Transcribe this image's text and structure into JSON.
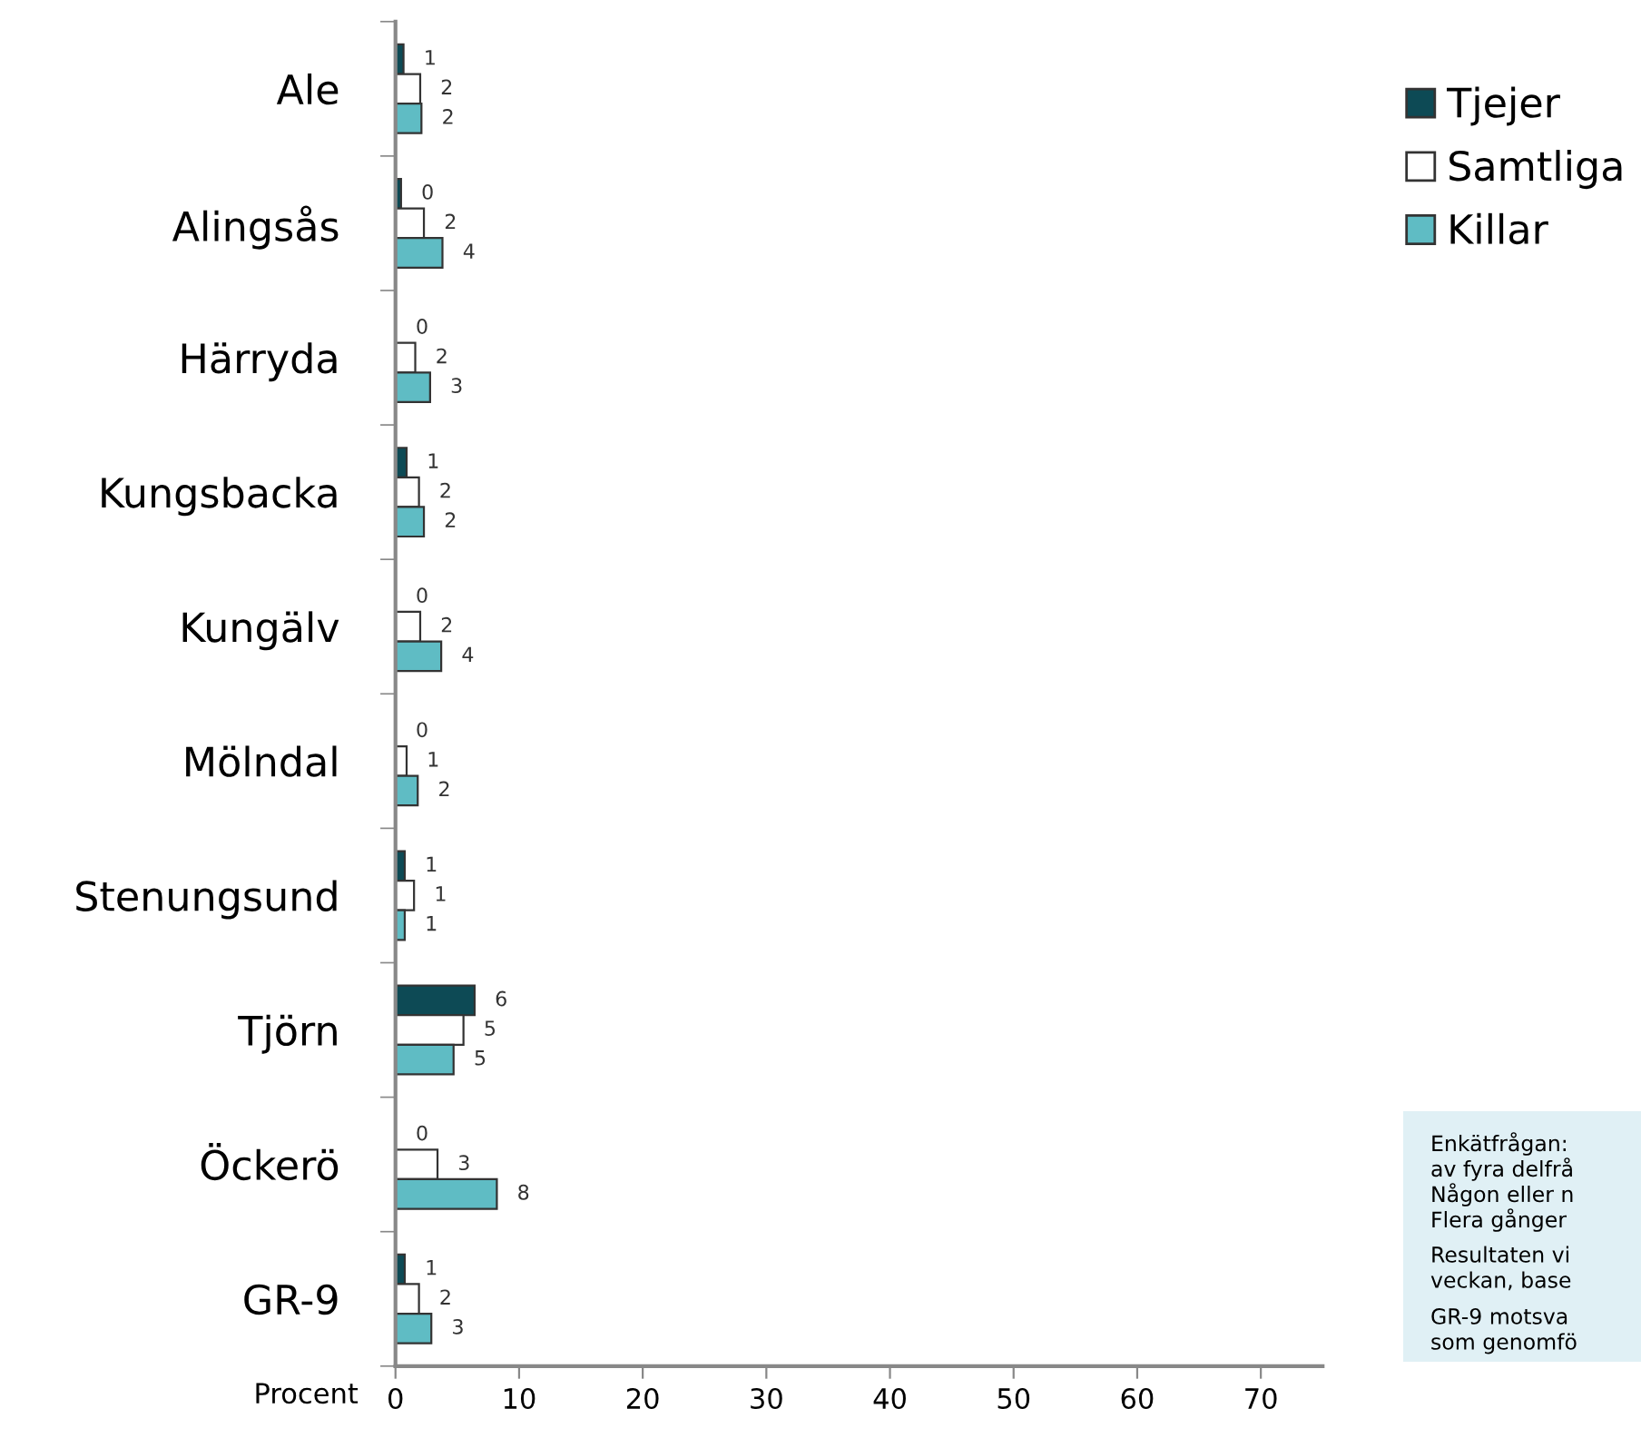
{
  "chart_data": {
    "type": "bar",
    "orientation": "horizontal",
    "xlabel": "Procent",
    "categories": [
      "Ale",
      "Alingsås",
      "Härryda",
      "Kungsbacka",
      "Kungälv",
      "Mölndal",
      "Stenungsund",
      "Tjörn",
      "Öckerö",
      "GR-9"
    ],
    "series": [
      {
        "name": "Tjejer",
        "color": "#0d4a55",
        "values": [
          0.65,
          0.45,
          0,
          0.9,
          0,
          0,
          0.75,
          6.4,
          0,
          0.75
        ],
        "value_labels": [
          "1",
          "0",
          "0",
          "1",
          "0",
          "0",
          "1",
          "6",
          "0",
          "1"
        ]
      },
      {
        "name": "Samtliga",
        "color": "#ffffff",
        "values": [
          2.0,
          2.3,
          1.6,
          1.9,
          2.0,
          0.9,
          1.5,
          5.5,
          3.4,
          1.9
        ],
        "value_labels": [
          "2",
          "2",
          "2",
          "2",
          "2",
          "1",
          "1",
          "5",
          "3",
          "2"
        ]
      },
      {
        "name": "Killar",
        "color": "#5fbcc4",
        "values": [
          2.1,
          3.8,
          2.8,
          2.3,
          3.7,
          1.8,
          0.75,
          4.7,
          8.2,
          2.9
        ],
        "value_labels": [
          "2",
          "4",
          "3",
          "2",
          "4",
          "2",
          "1",
          "5",
          "8",
          "3"
        ]
      }
    ],
    "xlim": [
      0,
      75
    ],
    "xticks": [
      0,
      10,
      20,
      30,
      40,
      50,
      60,
      70
    ],
    "legend": "top right",
    "grid": false,
    "annotations": [
      "Enkätfrågan:",
      "av fyra delfrå",
      "Någon eller n",
      "Flera gånger",
      "Resultaten vi",
      "veckan, base",
      "GR-9 motsva",
      "som genomfö"
    ]
  }
}
